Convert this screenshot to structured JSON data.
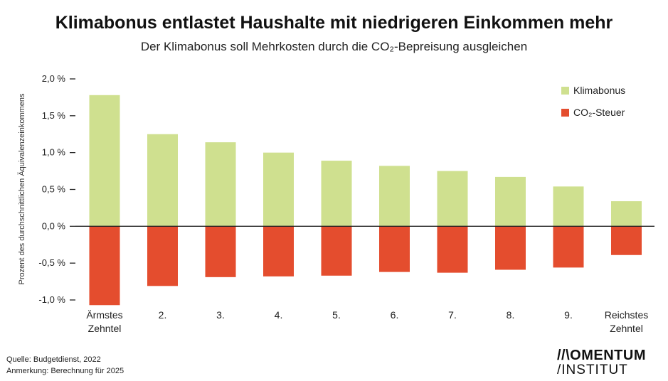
{
  "header": {
    "title": "Klimabonus entlastet Haushalte mit niedrigeren Einkommen mehr",
    "subtitle": "Der Klimabonus soll Mehrkosten durch die CO₂-Bepreisung ausgleichen"
  },
  "chart_data": {
    "type": "bar",
    "categories": [
      [
        "Ärmstes",
        "Zehntel"
      ],
      [
        "2."
      ],
      [
        "3."
      ],
      [
        "4."
      ],
      [
        "5."
      ],
      [
        "6."
      ],
      [
        "7."
      ],
      [
        "8."
      ],
      [
        "9."
      ],
      [
        "Reichstes",
        "Zehntel"
      ]
    ],
    "series": [
      {
        "name": "Klimabonus",
        "color": "#cfe08f",
        "values": [
          1.78,
          1.25,
          1.14,
          1.0,
          0.89,
          0.82,
          0.75,
          0.67,
          0.54,
          0.34
        ]
      },
      {
        "name": "CO₂-Steuer",
        "color": "#e44d2e",
        "values": [
          -1.07,
          -0.81,
          -0.69,
          -0.68,
          -0.67,
          -0.62,
          -0.63,
          -0.59,
          -0.56,
          -0.39
        ]
      }
    ],
    "ylabel": "Prozent des durchschnittlichen Äquivalenzeinkommens",
    "ylim": [
      -1.0,
      2.0
    ],
    "yticks": [
      2.0,
      1.5,
      1.0,
      0.5,
      0.0,
      -0.5,
      -1.0
    ],
    "ytick_labels": [
      "2,0 %",
      "1,5 %",
      "1,0 %",
      "0,5 %",
      "0,0 %",
      "-0,5 %",
      "-1,0 %"
    ],
    "legend_position": "top-right",
    "grid": false,
    "zero_line": true
  },
  "footer": {
    "source": "Quelle: Budgetdienst, 2022",
    "note": "Anmerkung: Berechnung für 2025"
  },
  "logo": {
    "line1": "//\\OMENTUM",
    "line2": "/INSTITUT"
  }
}
